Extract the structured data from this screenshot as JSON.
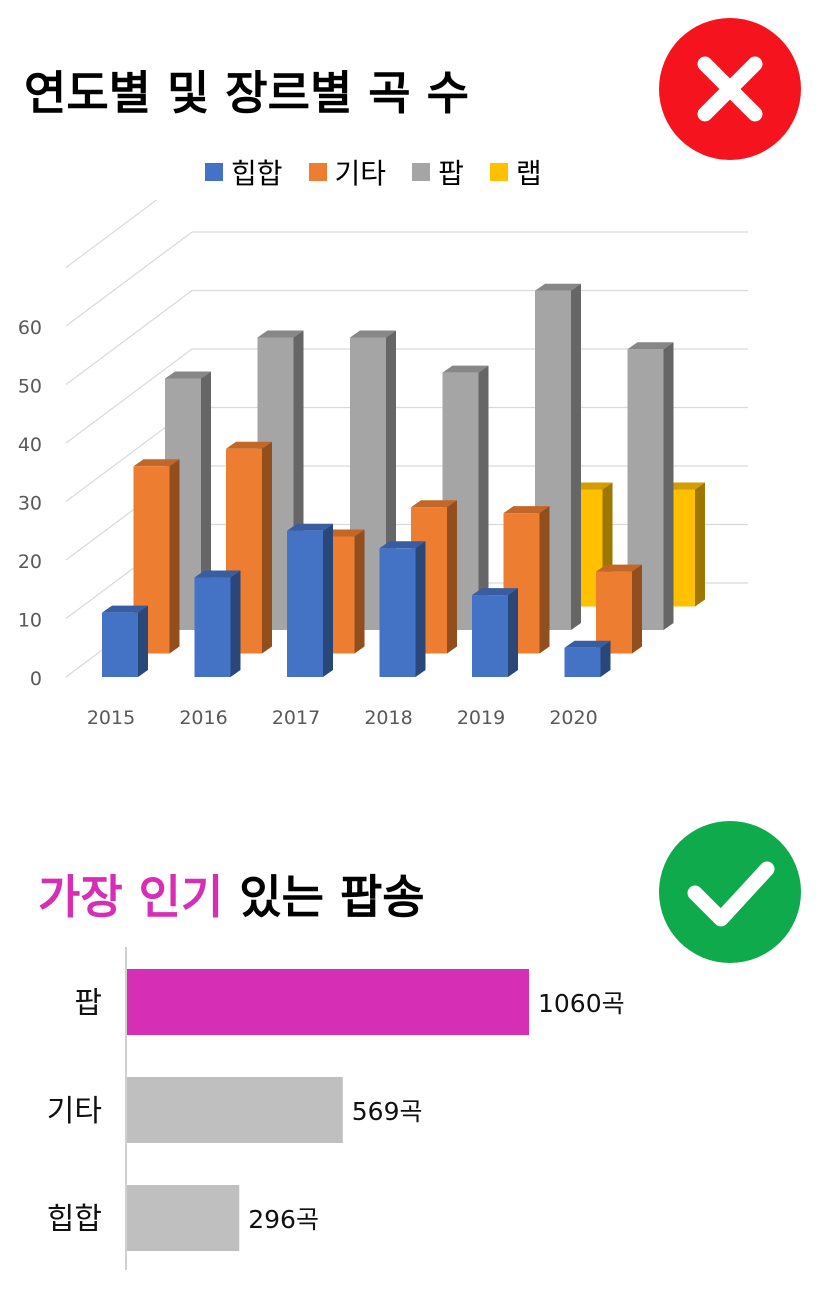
{
  "top_section": {
    "title": "연도별 및 장르별 곡 수",
    "status_icon": "x-icon"
  },
  "bottom_section": {
    "title_highlight": "가장 인기",
    "title_rest": " 있는 팝송",
    "status_icon": "check-icon"
  },
  "colors": {
    "hiphop": "#4472c4",
    "other": "#ed7d31",
    "pop": "#a5a5a5",
    "rap": "#ffc000",
    "highlight": "#d62fb5",
    "bar_gray": "#bfbfbf",
    "bad": "#f5141e",
    "good": "#0faa4b"
  },
  "chart_data": [
    {
      "type": "bar",
      "variant": "3d-clustered",
      "title": "연도별 및 장르별 곡 수",
      "categories": [
        "2015",
        "2016",
        "2017",
        "2018",
        "2019",
        "2020"
      ],
      "series": [
        {
          "name": "힙합",
          "values": [
            11,
            17,
            25,
            22,
            14,
            5
          ]
        },
        {
          "name": "기타",
          "values": [
            32,
            35,
            20,
            25,
            24,
            14
          ]
        },
        {
          "name": "팝",
          "values": [
            43,
            50,
            50,
            44,
            58,
            48
          ]
        },
        {
          "name": "랩",
          "values": [
            2,
            2,
            0,
            0,
            20,
            20
          ]
        }
      ],
      "yticks": [
        "0",
        "10",
        "20",
        "30",
        "40",
        "50",
        "60"
      ],
      "ylim": [
        0,
        70
      ],
      "legend": "top",
      "grid": true
    },
    {
      "type": "bar",
      "orientation": "horizontal",
      "title": "가장 인기 있는 팝송",
      "categories": [
        "팝",
        "기타",
        "힙합"
      ],
      "values": [
        1060,
        569,
        296
      ],
      "value_labels": [
        "1060곡",
        "569곡",
        "296곡"
      ]
    }
  ]
}
